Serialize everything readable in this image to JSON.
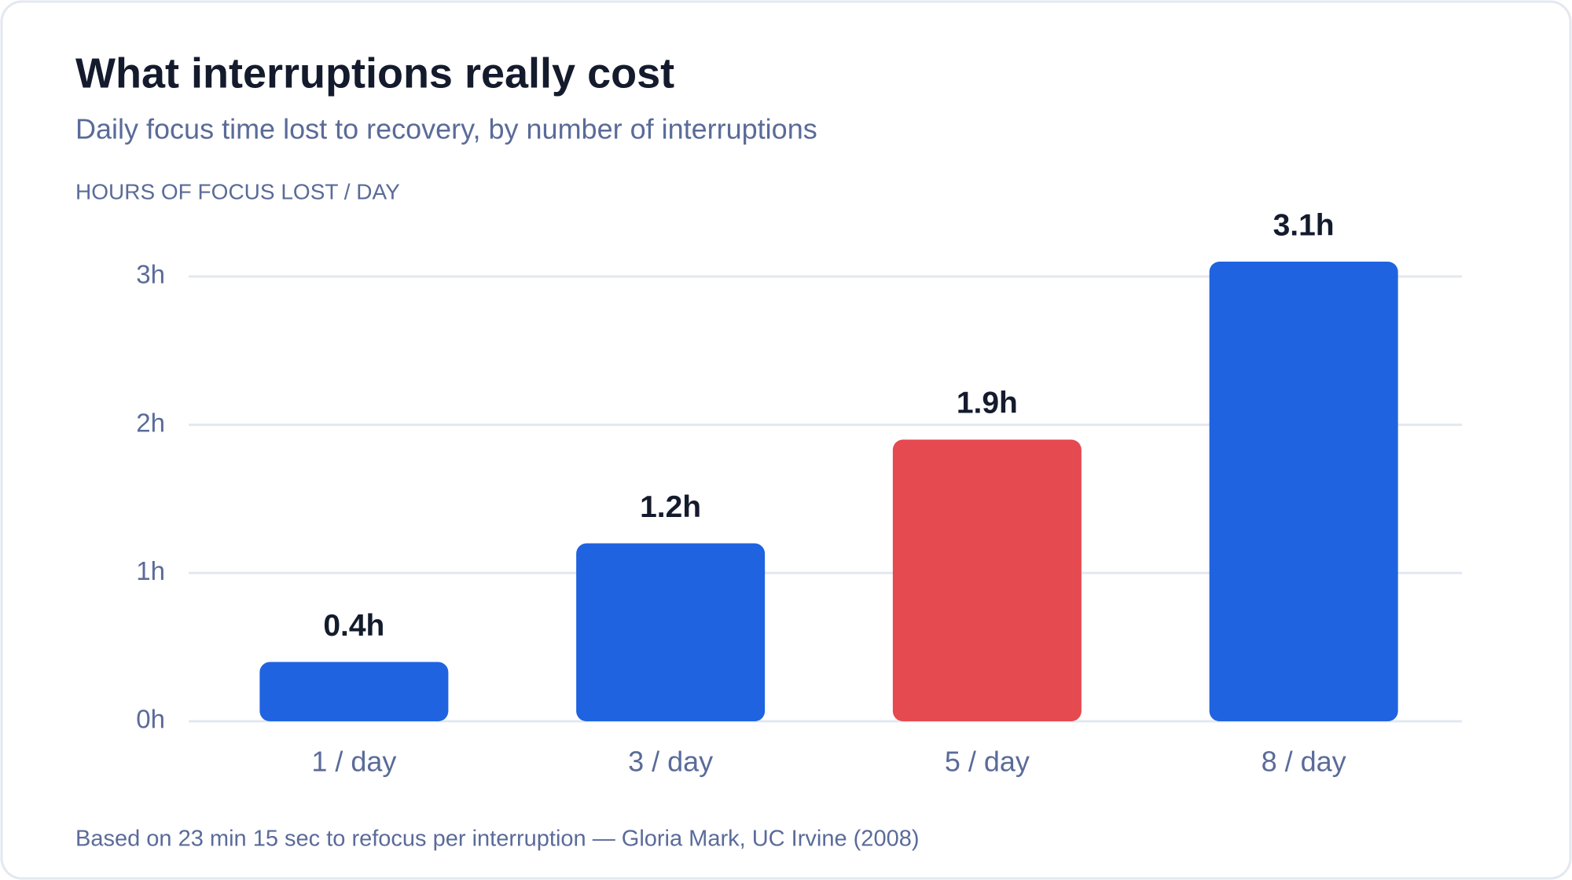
{
  "chart_data": {
    "type": "bar",
    "title": "What interruptions really cost",
    "subtitle": "Daily focus time lost to recovery, by number of interruptions",
    "y_label": "HOURS OF FOCUS LOST / DAY",
    "categories": [
      "1 / day",
      "3 / day",
      "5 / day",
      "8 / day"
    ],
    "values": [
      0.4,
      1.2,
      1.9,
      3.1
    ],
    "value_labels": [
      "0.4h",
      "1.2h",
      "1.9h",
      "3.1h"
    ],
    "colors": [
      "#1f63e0",
      "#1f63e0",
      "#e44a4f",
      "#1f63e0"
    ],
    "ylim": [
      0,
      3.1
    ],
    "yticks": [
      {
        "value": 0,
        "label": "0h"
      },
      {
        "value": 1,
        "label": "1h"
      },
      {
        "value": 2,
        "label": "2h"
      },
      {
        "value": 3,
        "label": "3h"
      }
    ],
    "grid": true,
    "note": "Based on 23 min 15 sec to refocus per interruption — Gloria Mark, UC Irvine (2008)"
  }
}
